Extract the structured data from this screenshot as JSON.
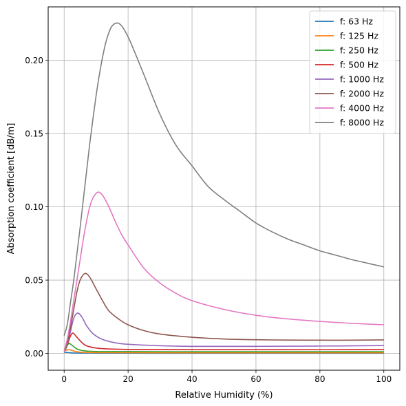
{
  "chart_data": {
    "type": "line",
    "xlabel": "Relative Humidity (%)",
    "ylabel": "Absorption coefficient [dB/m]",
    "xlim": [
      -5,
      105
    ],
    "ylim": [
      -0.0115,
      0.2365
    ],
    "xticks": [
      0,
      20,
      40,
      60,
      80,
      100
    ],
    "yticks": [
      0.0,
      0.05,
      0.1,
      0.15,
      0.2
    ],
    "xtick_labels": [
      "0",
      "20",
      "40",
      "60",
      "80",
      "100"
    ],
    "ytick_labels": [
      "0.00",
      "0.05",
      "0.10",
      "0.15",
      "0.20"
    ],
    "grid": true,
    "legend_position": "top-right",
    "series": [
      {
        "name": "f: 63 Hz",
        "color": "#1f77b4",
        "points": [
          [
            0,
            0.0008
          ],
          [
            1,
            0.0006
          ],
          [
            2,
            0.0004
          ],
          [
            4,
            0.0002
          ],
          [
            10,
            0.00015
          ],
          [
            30,
            0.0001
          ],
          [
            60,
            0.0001
          ],
          [
            100,
            0.0001
          ]
        ]
      },
      {
        "name": "f: 125 Hz",
        "color": "#ff7f0e",
        "points": [
          [
            0,
            0.0015
          ],
          [
            0.5,
            0.002
          ],
          [
            1,
            0.0024
          ],
          [
            1.5,
            0.0025
          ],
          [
            2,
            0.0023
          ],
          [
            3,
            0.0016
          ],
          [
            5,
            0.0008
          ],
          [
            10,
            0.0005
          ],
          [
            30,
            0.0004
          ],
          [
            60,
            0.0004
          ],
          [
            100,
            0.0004
          ]
        ]
      },
      {
        "name": "f: 250 Hz",
        "color": "#2ca02c",
        "points": [
          [
            0,
            0.0015
          ],
          [
            0.5,
            0.003
          ],
          [
            1,
            0.0055
          ],
          [
            1.6,
            0.0068
          ],
          [
            2.5,
            0.0055
          ],
          [
            4,
            0.003
          ],
          [
            6,
            0.0018
          ],
          [
            10,
            0.0013
          ],
          [
            20,
            0.0012
          ],
          [
            40,
            0.0011
          ],
          [
            70,
            0.0011
          ],
          [
            100,
            0.0011
          ]
        ]
      },
      {
        "name": "f: 500 Hz",
        "color": "#d62728",
        "points": [
          [
            0,
            0.0015
          ],
          [
            1,
            0.006
          ],
          [
            2,
            0.012
          ],
          [
            2.8,
            0.0138
          ],
          [
            4,
            0.011
          ],
          [
            6,
            0.0065
          ],
          [
            8,
            0.0045
          ],
          [
            12,
            0.0032
          ],
          [
            20,
            0.0027
          ],
          [
            40,
            0.0025
          ],
          [
            70,
            0.0025
          ],
          [
            100,
            0.0026
          ]
        ]
      },
      {
        "name": "f: 1000 Hz",
        "color": "#9467bd",
        "points": [
          [
            0,
            0.0015
          ],
          [
            1,
            0.007
          ],
          [
            2,
            0.015
          ],
          [
            3,
            0.024
          ],
          [
            4.2,
            0.0275
          ],
          [
            5.5,
            0.025
          ],
          [
            7,
            0.019
          ],
          [
            9,
            0.0135
          ],
          [
            12,
            0.0095
          ],
          [
            16,
            0.0072
          ],
          [
            20,
            0.0062
          ],
          [
            30,
            0.0052
          ],
          [
            40,
            0.0048
          ],
          [
            60,
            0.0048
          ],
          [
            80,
            0.005
          ],
          [
            100,
            0.0053
          ]
        ]
      },
      {
        "name": "f: 2000 Hz",
        "color": "#8c564b",
        "points": [
          [
            0,
            0.0015
          ],
          [
            1,
            0.008
          ],
          [
            2,
            0.018
          ],
          [
            3,
            0.03
          ],
          [
            4,
            0.042
          ],
          [
            5,
            0.05
          ],
          [
            6.5,
            0.0545
          ],
          [
            8,
            0.052
          ],
          [
            10,
            0.044
          ],
          [
            12,
            0.036
          ],
          [
            14,
            0.029
          ],
          [
            17,
            0.0235
          ],
          [
            20,
            0.0195
          ],
          [
            25,
            0.0155
          ],
          [
            30,
            0.0132
          ],
          [
            40,
            0.011
          ],
          [
            50,
            0.0098
          ],
          [
            60,
            0.0093
          ],
          [
            70,
            0.0091
          ],
          [
            80,
            0.009
          ],
          [
            90,
            0.009
          ],
          [
            100,
            0.0092
          ]
        ]
      },
      {
        "name": "f: 4000 Hz",
        "color": "#e377c2",
        "points": [
          [
            0,
            0.0015
          ],
          [
            1,
            0.01
          ],
          [
            2,
            0.022
          ],
          [
            3,
            0.036
          ],
          [
            4,
            0.05
          ],
          [
            5,
            0.064
          ],
          [
            6,
            0.078
          ],
          [
            7,
            0.09
          ],
          [
            8,
            0.1
          ],
          [
            9,
            0.106
          ],
          [
            10.5,
            0.11
          ],
          [
            12,
            0.108
          ],
          [
            14,
            0.1
          ],
          [
            16,
            0.09
          ],
          [
            18,
            0.081
          ],
          [
            20,
            0.074
          ],
          [
            25,
            0.058
          ],
          [
            30,
            0.048
          ],
          [
            35,
            0.041
          ],
          [
            40,
            0.036
          ],
          [
            50,
            0.03
          ],
          [
            60,
            0.026
          ],
          [
            70,
            0.0235
          ],
          [
            80,
            0.0218
          ],
          [
            90,
            0.0205
          ],
          [
            100,
            0.0195
          ]
        ]
      },
      {
        "name": "f: 8000 Hz",
        "color": "#7f7f7f",
        "points": [
          [
            0,
            0.012
          ],
          [
            1,
            0.02
          ],
          [
            2,
            0.035
          ],
          [
            3,
            0.05
          ],
          [
            4,
            0.068
          ],
          [
            5,
            0.086
          ],
          [
            6,
            0.105
          ],
          [
            7,
            0.124
          ],
          [
            8,
            0.143
          ],
          [
            9,
            0.16
          ],
          [
            10,
            0.176
          ],
          [
            11,
            0.19
          ],
          [
            12,
            0.202
          ],
          [
            13,
            0.212
          ],
          [
            14,
            0.219
          ],
          [
            15,
            0.2235
          ],
          [
            16.5,
            0.2255
          ],
          [
            18,
            0.2235
          ],
          [
            20,
            0.216
          ],
          [
            22,
            0.206
          ],
          [
            25,
            0.19
          ],
          [
            30,
            0.163
          ],
          [
            35,
            0.142
          ],
          [
            40,
            0.128
          ],
          [
            45,
            0.114
          ],
          [
            50,
            0.105
          ],
          [
            55,
            0.097
          ],
          [
            60,
            0.089
          ],
          [
            65,
            0.083
          ],
          [
            70,
            0.078
          ],
          [
            75,
            0.074
          ],
          [
            80,
            0.07
          ],
          [
            85,
            0.067
          ],
          [
            90,
            0.064
          ],
          [
            95,
            0.0615
          ],
          [
            100,
            0.059
          ]
        ]
      }
    ]
  }
}
